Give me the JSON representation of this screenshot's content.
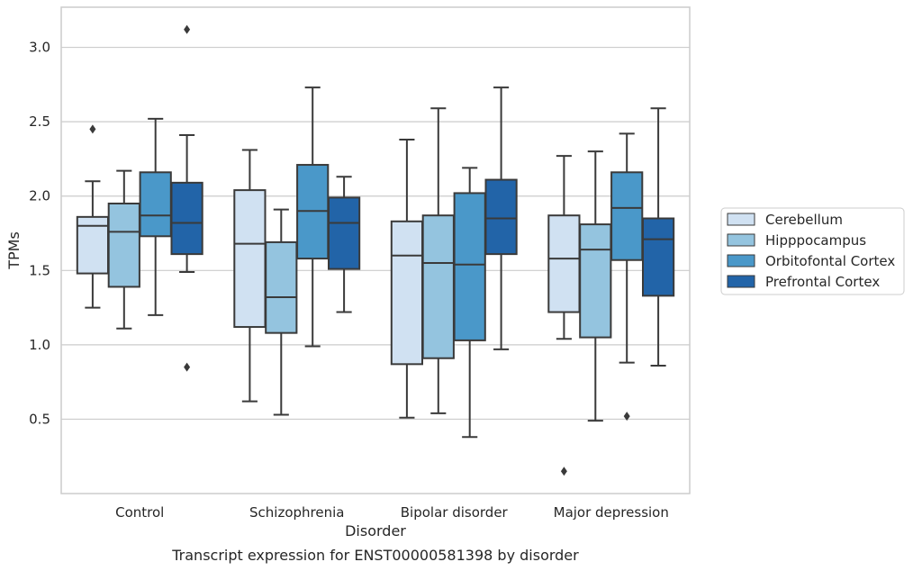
{
  "caption": "Transcript expression for ENST00000581398 by disorder",
  "chart_data": {
    "type": "boxplot",
    "xlabel": "Disorder",
    "ylabel": "TPMs",
    "ylim": [
      0.0,
      3.27
    ],
    "yticks": [
      0.5,
      1.0,
      1.5,
      2.0,
      2.5,
      3.0
    ],
    "ytick_labels": [
      "0.5",
      "1.0",
      "1.5",
      "2.0",
      "2.5",
      "3.0"
    ],
    "grid": "horizontal",
    "legend_position": "right",
    "categories": [
      "Control",
      "Schizophrenia",
      "Bipolar disorder",
      "Major depression"
    ],
    "series": [
      {
        "name": "Cerebellum",
        "color": "#d0e1f2",
        "boxes": [
          {
            "whislo": 1.25,
            "q1": 1.48,
            "med": 1.8,
            "q3": 1.86,
            "whishi": 2.1,
            "fliers": [
              2.45
            ]
          },
          {
            "whislo": 0.62,
            "q1": 1.12,
            "med": 1.68,
            "q3": 2.04,
            "whishi": 2.31,
            "fliers": []
          },
          {
            "whislo": 0.51,
            "q1": 0.87,
            "med": 1.6,
            "q3": 1.83,
            "whishi": 2.38,
            "fliers": []
          },
          {
            "whislo": 1.04,
            "q1": 1.22,
            "med": 1.58,
            "q3": 1.87,
            "whishi": 2.27,
            "fliers": [
              0.15
            ]
          }
        ]
      },
      {
        "name": "Hipppocampus",
        "color": "#94c4df",
        "boxes": [
          {
            "whislo": 1.11,
            "q1": 1.39,
            "med": 1.76,
            "q3": 1.95,
            "whishi": 2.17,
            "fliers": []
          },
          {
            "whislo": 0.53,
            "q1": 1.08,
            "med": 1.32,
            "q3": 1.69,
            "whishi": 1.91,
            "fliers": []
          },
          {
            "whislo": 0.54,
            "q1": 0.91,
            "med": 1.55,
            "q3": 1.87,
            "whishi": 2.59,
            "fliers": []
          },
          {
            "whislo": 0.49,
            "q1": 1.05,
            "med": 1.64,
            "q3": 1.81,
            "whishi": 2.3,
            "fliers": []
          }
        ]
      },
      {
        "name": "Orbitofontal Cortex",
        "color": "#4a98c9",
        "boxes": [
          {
            "whislo": 1.2,
            "q1": 1.73,
            "med": 1.87,
            "q3": 2.16,
            "whishi": 2.52,
            "fliers": []
          },
          {
            "whislo": 0.99,
            "q1": 1.58,
            "med": 1.9,
            "q3": 2.21,
            "whishi": 2.73,
            "fliers": []
          },
          {
            "whislo": 0.38,
            "q1": 1.03,
            "med": 1.54,
            "q3": 2.02,
            "whishi": 2.19,
            "fliers": []
          },
          {
            "whislo": 0.88,
            "q1": 1.57,
            "med": 1.92,
            "q3": 2.16,
            "whishi": 2.42,
            "fliers": [
              0.52
            ]
          }
        ]
      },
      {
        "name": "Prefrontal Cortex",
        "color": "#2264a8",
        "boxes": [
          {
            "whislo": 1.49,
            "q1": 1.61,
            "med": 1.82,
            "q3": 2.09,
            "whishi": 2.41,
            "fliers": [
              3.12,
              0.85
            ]
          },
          {
            "whislo": 1.22,
            "q1": 1.51,
            "med": 1.82,
            "q3": 1.99,
            "whishi": 2.13,
            "fliers": []
          },
          {
            "whislo": 0.97,
            "q1": 1.61,
            "med": 1.85,
            "q3": 2.11,
            "whishi": 2.73,
            "fliers": []
          },
          {
            "whislo": 0.86,
            "q1": 1.33,
            "med": 1.71,
            "q3": 1.85,
            "whishi": 2.59,
            "fliers": []
          }
        ]
      }
    ]
  }
}
